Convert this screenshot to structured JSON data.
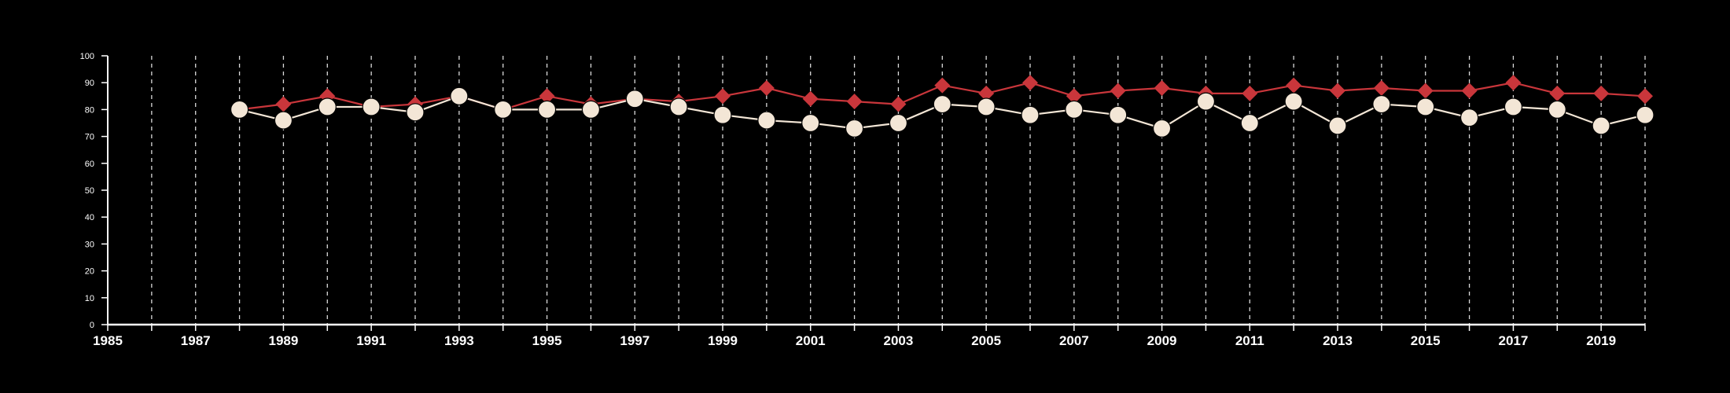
{
  "colors": {
    "background": "#000000",
    "axis": "#ffffff",
    "grid": "#d9d9d9",
    "series_red": "#c9363b",
    "series_cream": "#f3e6d6"
  },
  "chart_data": {
    "type": "line",
    "xlim": [
      1985,
      2020
    ],
    "ylim": [
      0,
      100
    ],
    "yticks": [
      0,
      10,
      20,
      30,
      40,
      50,
      60,
      70,
      80,
      90,
      100
    ],
    "xtick_labels": [
      1985,
      1987,
      1989,
      1991,
      1993,
      1995,
      1997,
      1999,
      2001,
      2003,
      2005,
      2007,
      2009,
      2011,
      2013,
      2015,
      2017,
      2019
    ],
    "grid": "vertical dashed at every year",
    "legend": "none",
    "x": [
      1988,
      1989,
      1990,
      1991,
      1992,
      1993,
      1994,
      1995,
      1996,
      1997,
      1998,
      1999,
      2000,
      2001,
      2002,
      2003,
      2004,
      2005,
      2006,
      2007,
      2008,
      2009,
      2010,
      2011,
      2012,
      2013,
      2014,
      2015,
      2016,
      2017,
      2018,
      2019,
      2020
    ],
    "series": [
      {
        "marker": "diamond",
        "color": "#c9363b",
        "values": [
          80,
          82,
          85,
          81,
          82,
          85,
          80,
          85,
          82,
          84,
          83,
          85,
          88,
          84,
          83,
          82,
          89,
          86,
          90,
          85,
          87,
          88,
          86,
          86,
          89,
          87,
          88,
          87,
          87,
          90,
          86,
          86,
          85
        ]
      },
      {
        "marker": "circle",
        "color": "#f3e6d6",
        "values": [
          80,
          76,
          81,
          81,
          79,
          85,
          80,
          80,
          80,
          84,
          81,
          78,
          76,
          75,
          73,
          75,
          82,
          81,
          78,
          80,
          78,
          73,
          83,
          75,
          83,
          74,
          82,
          81,
          77,
          81,
          80,
          74,
          78
        ]
      }
    ]
  }
}
